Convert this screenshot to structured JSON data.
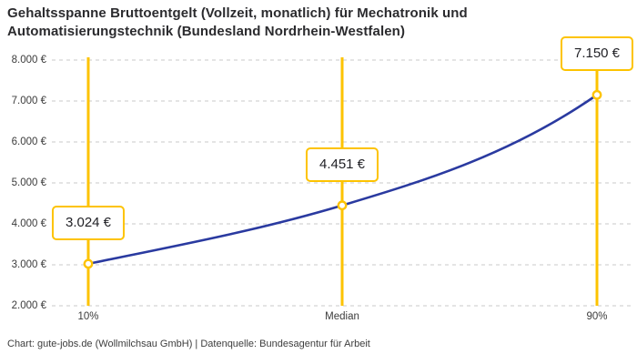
{
  "title": "Gehaltsspanne Bruttoentgelt (Vollzeit, monatlich) für Mechatronik und Automatisierungstechnik (Bundesland Nordrhein-Westfalen)",
  "footer": "Chart: gute-jobs.de (Wollmilchsau GmbH) | Datenquelle: Bundesagentur für Arbeit",
  "chart_data": {
    "type": "line",
    "categories": [
      "10%",
      "Median",
      "90%"
    ],
    "values": [
      3024,
      4451,
      7150
    ],
    "point_labels": [
      "3.024 €",
      "4.451 €",
      "7.150 €"
    ],
    "title": "Gehaltsspanne Bruttoentgelt (Vollzeit, monatlich) für Mechatronik und Automatisierungstechnik (Bundesland Nordrhein-Westfalen)",
    "xlabel": "",
    "ylabel": "",
    "y_axis": {
      "min": 2000,
      "max": 8000,
      "step": 1000,
      "tick_labels_top_to_bottom": [
        "8.000 €",
        "7.000 €",
        "6.000 €",
        "5.000 €",
        "4.000 €",
        "3.000 €",
        "2.000 €"
      ]
    },
    "grid": "horizontal-dashed",
    "legend": "none",
    "colors": {
      "accent": "#fdc300",
      "line": "#2a3aa0",
      "grid": "#c9c9c9",
      "marker_fill": "#ffffff"
    },
    "annotations": "each data point has a yellow vertical guide line and a yellow-bordered value label box above the point"
  }
}
